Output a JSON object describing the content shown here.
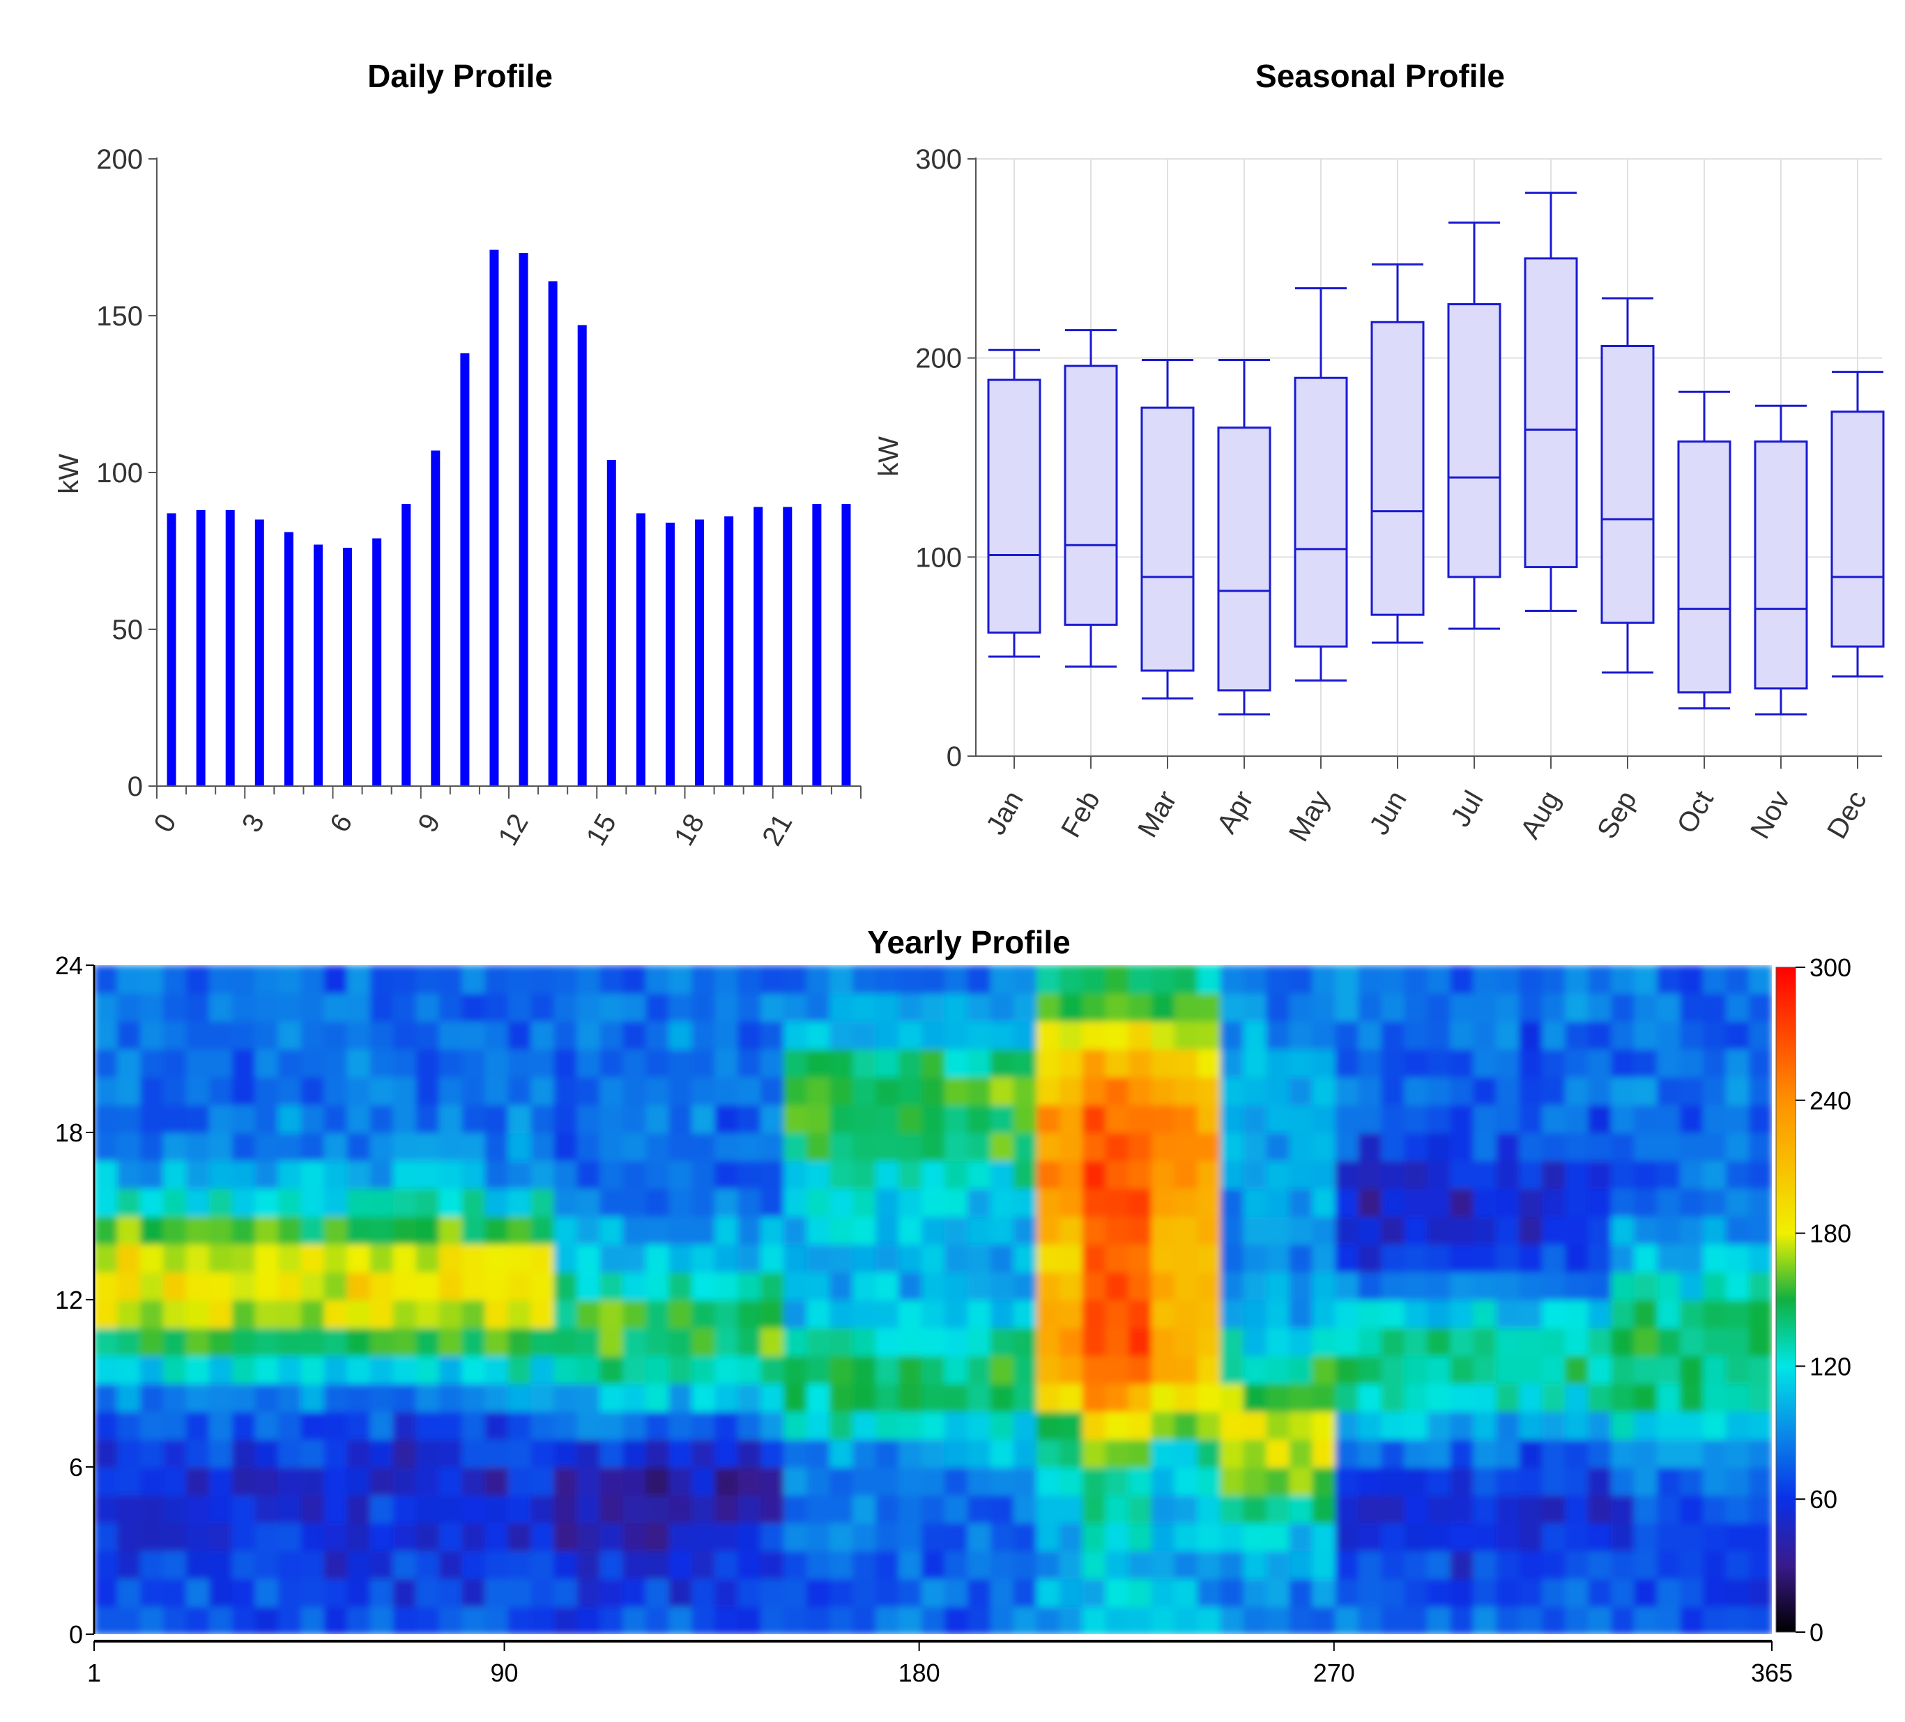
{
  "chart_data": [
    {
      "type": "bar",
      "title": "Daily Profile",
      "xlabel": "",
      "ylabel": "kW",
      "ylim": [
        0,
        200
      ],
      "yticks": [
        0,
        50,
        100,
        150,
        200
      ],
      "categories": [
        0,
        1,
        2,
        3,
        4,
        5,
        6,
        7,
        8,
        9,
        10,
        11,
        12,
        13,
        14,
        15,
        16,
        17,
        18,
        19,
        20,
        21,
        22,
        23
      ],
      "xtick_labels": [
        "0",
        "3",
        "6",
        "9",
        "12",
        "15",
        "18",
        "21"
      ],
      "values": [
        87,
        88,
        88,
        85,
        81,
        77,
        76,
        79,
        90,
        107,
        138,
        171,
        170,
        161,
        147,
        104,
        87,
        84,
        85,
        86,
        89,
        89,
        90,
        90
      ],
      "color": "#0000ff"
    },
    {
      "type": "box",
      "title": "Seasonal Profile",
      "xlabel": "",
      "ylabel": "kW",
      "ylim": [
        0,
        300
      ],
      "yticks": [
        0,
        100,
        200,
        300
      ],
      "categories": [
        "Jan",
        "Feb",
        "Mar",
        "Apr",
        "May",
        "Jun",
        "Jul",
        "Aug",
        "Sep",
        "Oct",
        "Nov",
        "Dec"
      ],
      "boxes": [
        {
          "min": 50,
          "q1": 62,
          "median": 101,
          "q3": 189,
          "max": 204
        },
        {
          "min": 45,
          "q1": 66,
          "median": 106,
          "q3": 196,
          "max": 214
        },
        {
          "min": 29,
          "q1": 43,
          "median": 90,
          "q3": 175,
          "max": 199
        },
        {
          "min": 21,
          "q1": 33,
          "median": 83,
          "q3": 165,
          "max": 199
        },
        {
          "min": 38,
          "q1": 55,
          "median": 104,
          "q3": 190,
          "max": 235
        },
        {
          "min": 57,
          "q1": 71,
          "median": 123,
          "q3": 218,
          "max": 247
        },
        {
          "min": 64,
          "q1": 90,
          "median": 140,
          "q3": 227,
          "max": 268
        },
        {
          "min": 73,
          "q1": 95,
          "median": 164,
          "q3": 250,
          "max": 283
        },
        {
          "min": 42,
          "q1": 67,
          "median": 119,
          "q3": 206,
          "max": 230
        },
        {
          "min": 24,
          "q1": 32,
          "median": 74,
          "q3": 158,
          "max": 183
        },
        {
          "min": 21,
          "q1": 34,
          "median": 74,
          "q3": 158,
          "max": 176
        },
        {
          "min": 40,
          "q1": 55,
          "median": 90,
          "q3": 173,
          "max": 193
        }
      ],
      "box_fill": "#dcdcfa",
      "box_stroke": "#1a1ad2"
    },
    {
      "type": "heatmap",
      "title": "Yearly Profile",
      "xlabel": "",
      "ylabel": "",
      "xlim": [
        1,
        365
      ],
      "ylim": [
        0,
        24
      ],
      "xticks": [
        1,
        90,
        180,
        270,
        365
      ],
      "yticks": [
        0,
        6,
        12,
        18,
        24
      ],
      "colorbar": {
        "min": 0,
        "max": 300,
        "ticks": [
          0,
          60,
          120,
          180,
          240,
          300
        ]
      },
      "grid_days": 73,
      "grid_hours": 24,
      "description": "Hourly load per day of year; daytime peak shifts from hours 10-16 (Jan-Mar) to hours 18-21 (Jun-Jul), with maximum around days 210-240"
    }
  ]
}
